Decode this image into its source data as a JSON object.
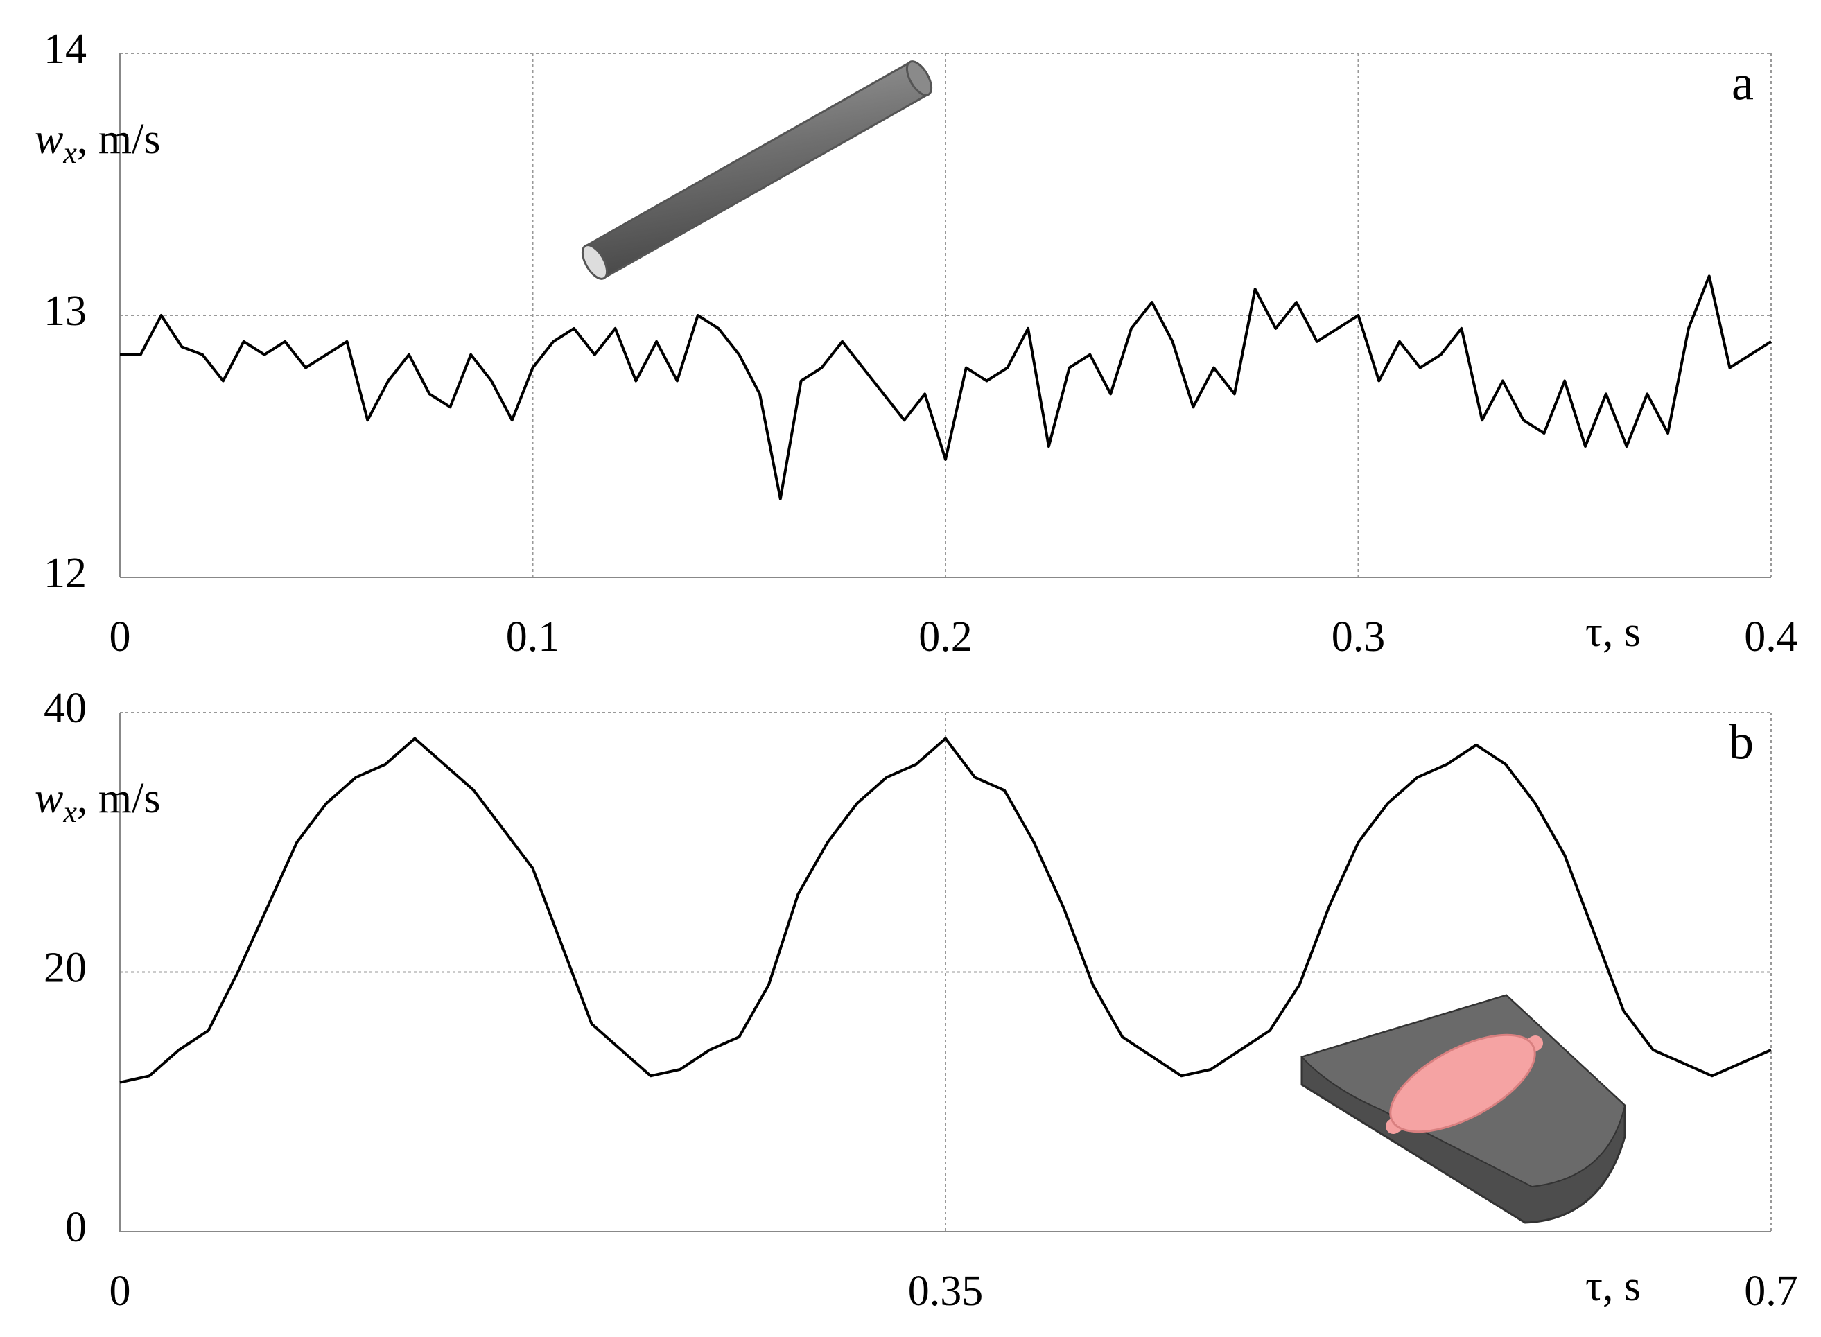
{
  "chart_data": [
    {
      "type": "line",
      "panel_label": "a",
      "y_label": {
        "symbol": "w",
        "subscript": "x",
        "unit": ", m/s"
      },
      "x_label": "τ, s",
      "x": [
        0,
        0.005,
        0.01,
        0.015,
        0.02,
        0.025,
        0.03,
        0.035,
        0.04,
        0.045,
        0.05,
        0.055,
        0.06,
        0.065,
        0.07,
        0.075,
        0.08,
        0.085,
        0.09,
        0.095,
        0.1,
        0.105,
        0.11,
        0.115,
        0.12,
        0.125,
        0.13,
        0.135,
        0.14,
        0.145,
        0.15,
        0.155,
        0.16,
        0.165,
        0.17,
        0.175,
        0.18,
        0.185,
        0.19,
        0.195,
        0.2,
        0.205,
        0.21,
        0.215,
        0.22,
        0.225,
        0.23,
        0.235,
        0.24,
        0.245,
        0.25,
        0.255,
        0.26,
        0.265,
        0.27,
        0.275,
        0.28,
        0.285,
        0.29,
        0.295,
        0.3,
        0.305,
        0.31,
        0.315,
        0.32,
        0.325,
        0.33,
        0.335,
        0.34,
        0.345,
        0.35,
        0.355,
        0.36,
        0.365,
        0.37,
        0.375,
        0.38,
        0.385,
        0.39,
        0.395,
        0.4
      ],
      "values": [
        12.85,
        12.85,
        13.0,
        12.88,
        12.85,
        12.75,
        12.9,
        12.85,
        12.9,
        12.8,
        12.85,
        12.9,
        12.6,
        12.75,
        12.85,
        12.7,
        12.65,
        12.85,
        12.75,
        12.6,
        12.8,
        12.9,
        12.95,
        12.85,
        12.95,
        12.75,
        12.9,
        12.75,
        13.0,
        12.95,
        12.85,
        12.7,
        12.3,
        12.75,
        12.8,
        12.9,
        12.8,
        12.7,
        12.6,
        12.7,
        12.45,
        12.8,
        12.75,
        12.8,
        12.95,
        12.5,
        12.8,
        12.85,
        12.7,
        12.95,
        13.05,
        12.9,
        12.65,
        12.8,
        12.7,
        13.1,
        12.95,
        13.05,
        12.9,
        12.95,
        13.0,
        12.75,
        12.9,
        12.8,
        12.85,
        12.95,
        12.6,
        12.75,
        12.6,
        12.55,
        12.75,
        12.5,
        12.7,
        12.5,
        12.7,
        12.55,
        12.95,
        13.15,
        12.8,
        12.85,
        12.9
      ],
      "color": "#000000",
      "xlim": [
        0,
        0.4
      ],
      "xticks": [
        0,
        0.1,
        0.2,
        0.3,
        0.4
      ],
      "ylim": [
        12,
        14
      ],
      "yticks": [
        12,
        13,
        14
      ],
      "grid": true
    },
    {
      "type": "line",
      "panel_label": "b",
      "y_label": {
        "symbol": "w",
        "subscript": "x",
        "unit": ", m/s"
      },
      "x_label": "τ, s",
      "x": [
        0,
        0.0125,
        0.025,
        0.0375,
        0.05,
        0.0625,
        0.075,
        0.0875,
        0.1,
        0.1125,
        0.125,
        0.1375,
        0.15,
        0.1625,
        0.175,
        0.1875,
        0.2,
        0.2125,
        0.225,
        0.2375,
        0.25,
        0.2625,
        0.275,
        0.2875,
        0.3,
        0.3125,
        0.325,
        0.3375,
        0.35,
        0.3625,
        0.375,
        0.3875,
        0.4,
        0.4125,
        0.425,
        0.4375,
        0.45,
        0.4625,
        0.475,
        0.4875,
        0.5,
        0.5125,
        0.525,
        0.5375,
        0.55,
        0.5625,
        0.575,
        0.5875,
        0.6,
        0.6125,
        0.625,
        0.6375,
        0.65,
        0.6625,
        0.675,
        0.6875,
        0.7
      ],
      "values": [
        11.5,
        12,
        14,
        15.5,
        20,
        25,
        30,
        33,
        35,
        36,
        38,
        36,
        34,
        31,
        28,
        22,
        16,
        14,
        12,
        12.5,
        14,
        15,
        19,
        26,
        30,
        33,
        35,
        36,
        38,
        35,
        34,
        30,
        25,
        19,
        15,
        13.5,
        12,
        12.5,
        14,
        15.5,
        19,
        25,
        30,
        33,
        35,
        36,
        37.5,
        36,
        33,
        29,
        23,
        17,
        14,
        13,
        12,
        13,
        14
      ],
      "color": "#000000",
      "xlim": [
        0,
        0.7
      ],
      "xticks": [
        0,
        0.35,
        0.7
      ],
      "ylim": [
        0,
        40
      ],
      "yticks": [
        0,
        20,
        40
      ],
      "grid": true
    }
  ]
}
